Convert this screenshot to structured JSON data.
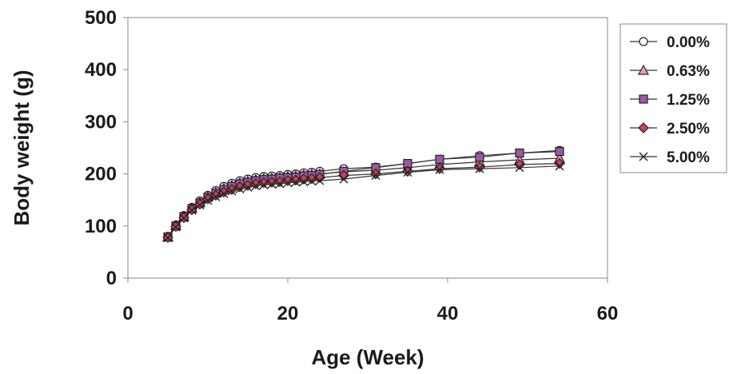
{
  "chart_data": {
    "type": "line",
    "xlabel": "Age (Week)",
    "ylabel": "Body weight (g)",
    "xlim": [
      0,
      60
    ],
    "ylim": [
      0,
      500
    ],
    "xticks": [
      0,
      20,
      40,
      60
    ],
    "yticks": [
      0,
      100,
      200,
      300,
      400,
      500
    ],
    "grid": false,
    "legend_position": "right",
    "x": [
      5,
      6,
      7,
      8,
      9,
      10,
      11,
      12,
      13,
      14,
      15,
      16,
      17,
      18,
      19,
      20,
      21,
      22,
      23,
      24,
      27,
      31,
      35,
      39,
      44,
      49,
      54
    ],
    "series": [
      {
        "name": "0.00%",
        "marker": "circle",
        "color": "#ffffff",
        "values": [
          80,
          102,
          120,
          136,
          148,
          159,
          168,
          176,
          182,
          187,
          190,
          193,
          195,
          196,
          197,
          199,
          200,
          202,
          203,
          205,
          210,
          213,
          220,
          228,
          235,
          240,
          245
        ]
      },
      {
        "name": "0.63%",
        "marker": "triangle",
        "color": "#e8a0b0",
        "values": [
          79,
          101,
          118,
          134,
          145,
          156,
          164,
          172,
          178,
          183,
          186,
          189,
          191,
          192,
          193,
          195,
          196,
          198,
          199,
          200,
          204,
          207,
          212,
          218,
          223,
          227,
          230
        ]
      },
      {
        "name": "1.25%",
        "marker": "square",
        "color": "#9b59a6",
        "values": [
          79,
          100,
          118,
          133,
          144,
          155,
          163,
          170,
          176,
          181,
          184,
          187,
          189,
          190,
          192,
          193,
          194,
          196,
          197,
          199,
          205,
          212,
          220,
          228,
          232,
          240,
          243
        ]
      },
      {
        "name": "2.50%",
        "marker": "diamond",
        "color": "#d04050",
        "values": [
          78,
          99,
          116,
          131,
          142,
          152,
          159,
          165,
          170,
          175,
          178,
          181,
          183,
          184,
          185,
          187,
          188,
          190,
          191,
          193,
          197,
          200,
          205,
          210,
          213,
          218,
          220
        ]
      },
      {
        "name": "5.00%",
        "marker": "x",
        "color": "#333333",
        "values": [
          77,
          98,
          115,
          130,
          140,
          149,
          156,
          162,
          167,
          171,
          174,
          177,
          179,
          180,
          181,
          183,
          184,
          185,
          186,
          187,
          190,
          197,
          203,
          208,
          210,
          212,
          215
        ]
      }
    ]
  }
}
